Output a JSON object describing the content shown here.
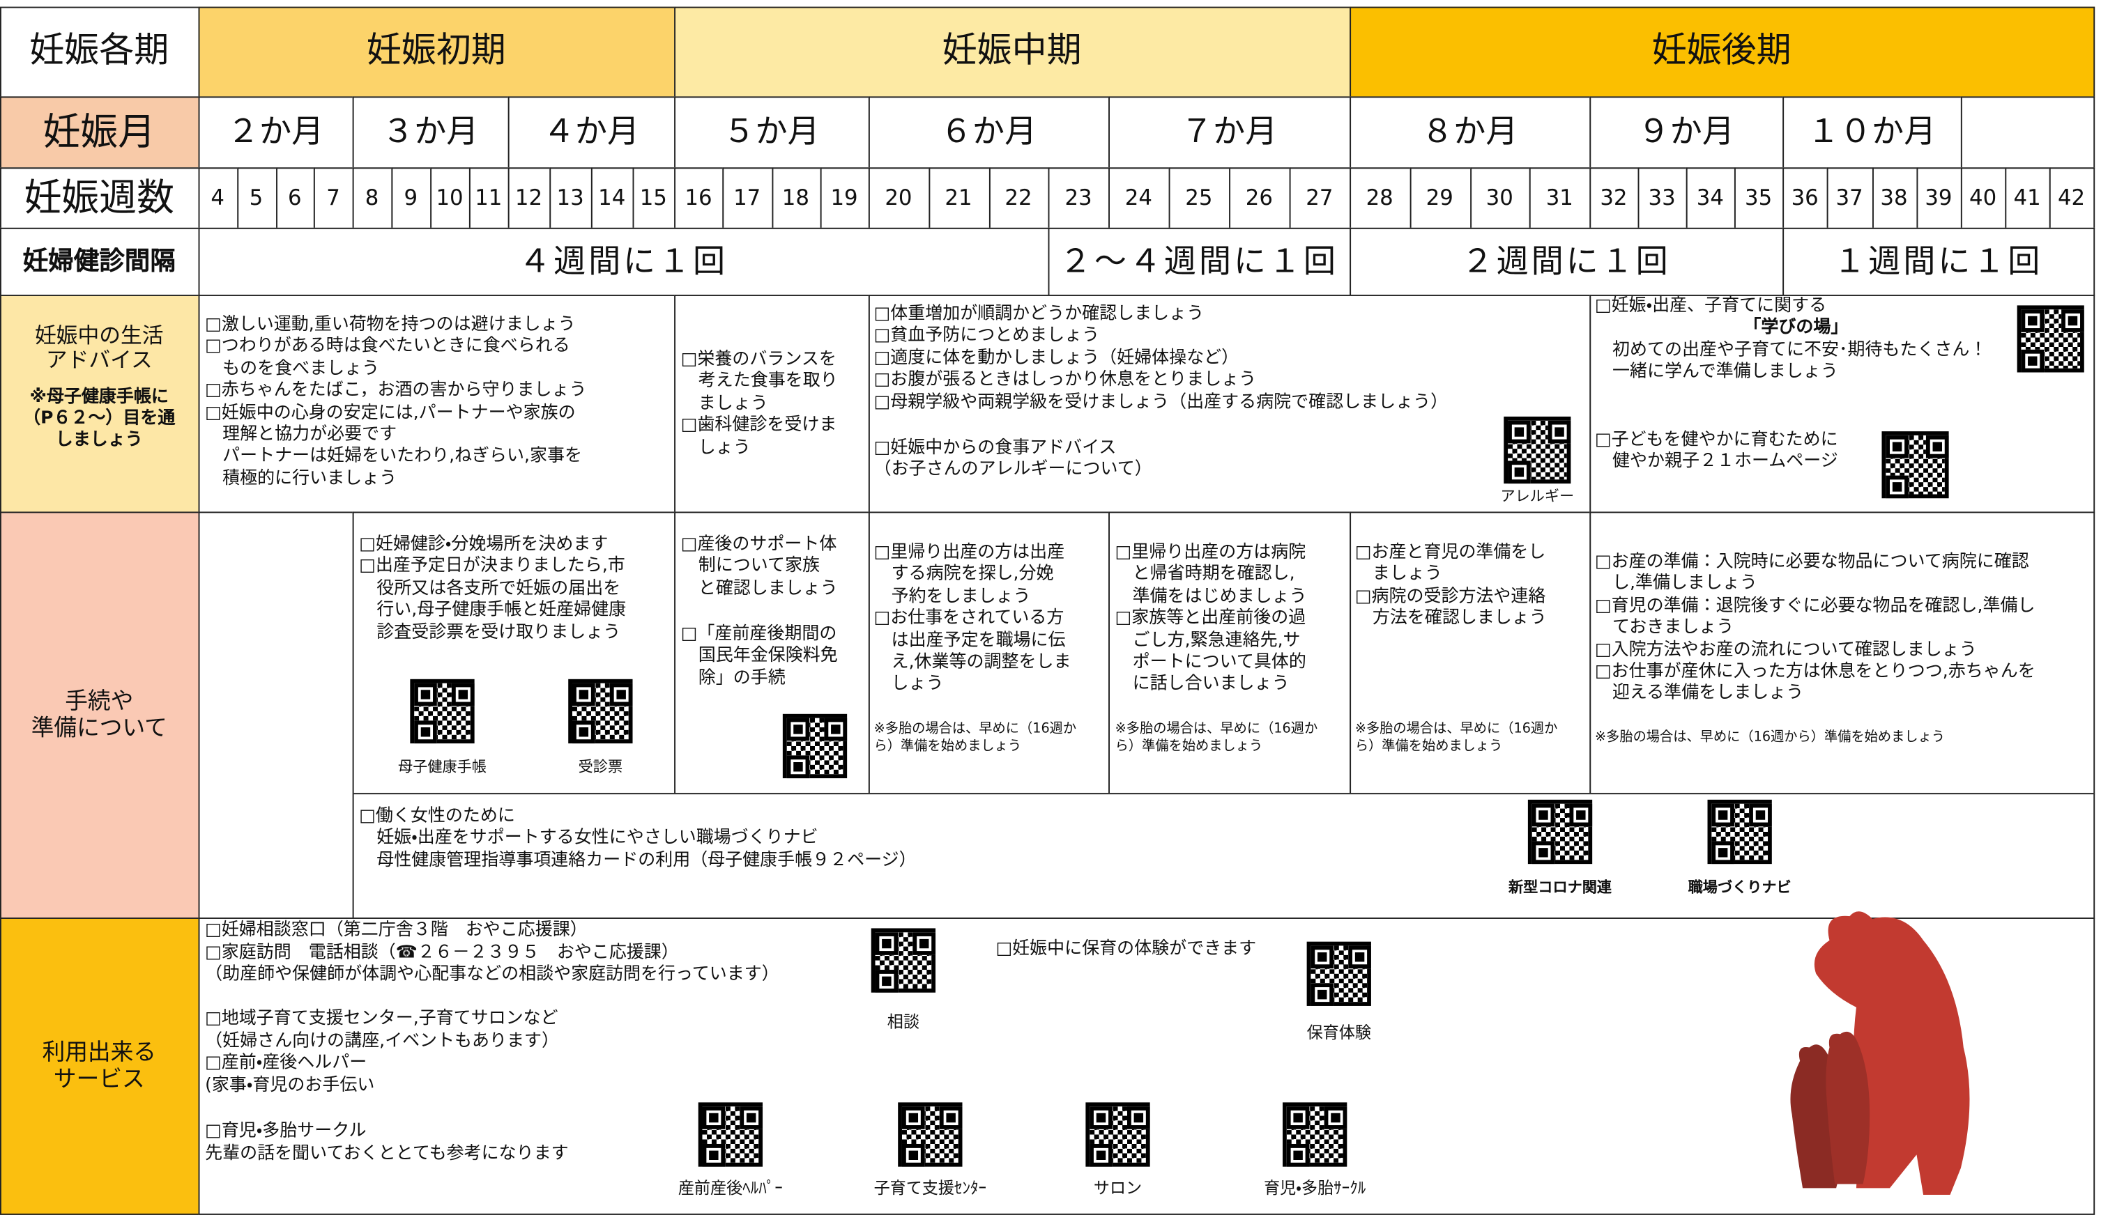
{
  "periods": {
    "label": "妊娠各期",
    "values": [
      "妊娠初期",
      "妊娠中期",
      "妊娠後期"
    ]
  },
  "months": {
    "label": "妊娠月",
    "values": [
      "２か月",
      "３か月",
      "４か月",
      "５か月",
      "６か月",
      "７か月",
      "８か月",
      "９か月",
      "１０か月"
    ]
  },
  "weeks": {
    "label": "妊娠週数",
    "values": [
      4,
      5,
      6,
      7,
      8,
      9,
      10,
      11,
      12,
      13,
      14,
      15,
      16,
      17,
      18,
      19,
      20,
      21,
      22,
      23,
      24,
      25,
      26,
      27,
      28,
      29,
      30,
      31,
      32,
      33,
      34,
      35,
      36,
      37,
      38,
      39,
      40,
      41,
      42
    ]
  },
  "checkups": {
    "label": "妊婦健診間隔",
    "values": [
      "４週間に１回",
      "２～４週間に１回",
      "２週間に１回",
      "１週間に１回"
    ]
  },
  "advice": {
    "label": [
      "妊娠中の生活",
      "アドバイス"
    ],
    "note": [
      "※母子健康手帳に",
      "（P６２～）目を通",
      "しましょう"
    ],
    "cells": [
      {
        "blocks": [
          [
            "□激しい運動,重い荷物を持つのは避けましょう",
            "□つわりがある時は食べたいときに食べられる",
            "ものを食べましょう",
            "□赤ちゃんをたばこ，お酒の害から守りましょう",
            "□妊娠中の心身の安定には,パートナーや家族の",
            "理解と協力が必要です",
            "パートナーは妊婦をいたわり,ねぎらい,家事を",
            "積極的に行いましょう"
          ]
        ]
      },
      {
        "blocks": [
          [
            "□栄養のバランスを",
            "考えた食事を取り",
            "ましょう",
            "□歯科健診を受けま",
            "しょう"
          ]
        ]
      },
      {
        "blocks": [
          [
            "□体重増加が順調かどうか確認しましょう",
            "□貧血予防につとめましょう",
            "□適度に体を動かしましょう（妊婦体操など）",
            "□お腹が張るときはしっかり休息をとりましょう",
            "□母親学級や両親学級を受けましょう（出産する病院で確認しましょう）"
          ],
          [
            "□妊娠中からの食事アドバイス",
            "（お子さんのアレルギーについて）"
          ]
        ],
        "qr_labels": [
          "アレルギー"
        ]
      },
      {
        "blocks": [
          [
            "□妊娠・出産、子育てに関する",
            "「学びの場」",
            "初めての出産や子育てに不安･期待もたくさん！",
            "一緒に学んで準備しましょう"
          ],
          [
            "□子どもを健やかに育むために",
            "健やか親子２１ホームページ"
          ]
        ]
      }
    ]
  },
  "procedures": {
    "label": [
      "手続や",
      "準備について"
    ],
    "cells": [
      {
        "blocks": [
          [
            "□妊婦健診・分娩場所を決めます",
            "□出産予定日が決まりましたら,市",
            "役所又は各支所で妊娠の届出を",
            "行い,母子健康手帳と妊産婦健康",
            "診査受診票を受け取りましょう"
          ]
        ],
        "qr_labels": [
          "母子健康手帳",
          "受診票"
        ]
      },
      {
        "blocks": [
          [
            "□産後のサポート体",
            "制について家族",
            "と確認しましょう"
          ],
          [
            "□「産前産後期間の",
            "国民年金保険料免",
            "除」の手続"
          ]
        ]
      },
      {
        "blocks": [
          [
            "□里帰り出産の方は出産",
            "する病院を探し,分娩",
            "予約をしましょう",
            "□お仕事をされている方",
            "は出産予定を職場に伝",
            "え,休業等の調整をしま",
            "しょう"
          ]
        ],
        "note": [
          "※多胎の場合は、早めに（16週か",
          "ら）準備を始めましょう"
        ]
      },
      {
        "blocks": [
          [
            "□里帰り出産の方は病院",
            "と帰省時期を確認し,",
            "準備をはじめましょう",
            "□家族等と出産前後の過",
            "ごし方,緊急連絡先,サ",
            "ポートについて具体的",
            "に話し合いましょう"
          ]
        ],
        "note": [
          "※多胎の場合は、早めに（16週か",
          "ら）準備を始めましょう"
        ]
      },
      {
        "blocks": [
          [
            "□お産と育児の準備をし",
            "ましょう",
            "□病院の受診方法や連絡",
            "方法を確認しましょう"
          ]
        ],
        "note": [
          "※多胎の場合は、早めに（16週か",
          "ら）準備を始めましょう"
        ]
      },
      {
        "blocks": [
          [
            "□お産の準備：入院時に必要な物品について病院に確認",
            "し,準備しましょう",
            "□育児の準備：退院後すぐに必要な物品を確認し,準備し",
            "ておきましょう",
            "□入院方法やお産の流れについて確認しましょう",
            "□お仕事が産休に入った方は休息をとりつつ,赤ちゃんを",
            "迎える準備をしましょう"
          ]
        ],
        "note": [
          "※多胎の場合は、早めに（16週から）準備を始めましょう"
        ]
      }
    ],
    "work": {
      "blocks": [
        [
          "□働く女性のために",
          "妊娠・出産をサポートする女性にやさしい職場づくりナビ",
          "母性健康管理指導事項連絡カードの利用（母子健康手帳９２ページ）"
        ]
      ],
      "qr_labels": [
        "新型コロナ関連",
        "職場づくりナビ"
      ]
    }
  },
  "services": {
    "label": [
      "利用出来る",
      "サービス"
    ],
    "blocks": [
      [
        "□妊婦相談窓口（第二庁舎３階　おやこ応援課）",
        "□家庭訪問　電話相談（☎２６－２３９５　おやこ応援課）",
        "（助産師や保健師が体調や心配事などの相談や家庭訪問を行っています）"
      ],
      [
        "□地域子育て支援センター,子育てサロンなど",
        "（妊婦さん向けの講座,イベントもあります）",
        "□産前・産後ヘルパー",
        "(家事・育児のお手伝い"
      ],
      [
        "□育児・多胎サークル",
        "先輩の話を聞いておくととても参考になります"
      ]
    ],
    "nursery": "□妊娠中に保育の体験ができます",
    "qr_labels": [
      "相談",
      "保育体験",
      "産前産後ﾍﾙﾊﾟｰ",
      "子育て支援ｾﾝﾀｰ",
      "サロン",
      "育児・多胎ｻｰｸﾙ"
    ]
  }
}
